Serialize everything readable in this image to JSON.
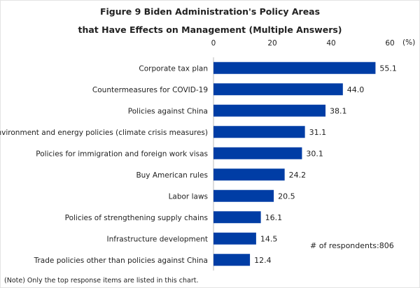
{
  "chart_data": {
    "type": "bar",
    "orientation": "horizontal",
    "title_line1": "Figure 9 Biden Administration's Policy Areas",
    "title_line2": "that Have Effects on Management (Multiple Answers)",
    "unit_label": "(%)",
    "xlim": [
      0,
      60
    ],
    "ticks": [
      0,
      20,
      40,
      60
    ],
    "grid": false,
    "bar_color": "#003DA5",
    "categories": [
      "Corporate tax plan",
      "Countermeasures for COVID-19",
      "Policies against China",
      "Environment and energy policies (climate crisis measures)",
      "Policies for immigration and foreign work visas",
      "Buy American rules",
      "Labor laws",
      "Policies of strengthening supply chains",
      "Infrastructure development",
      "Trade policies other than policies against China"
    ],
    "values": [
      55.1,
      44.0,
      38.1,
      31.1,
      30.1,
      24.2,
      20.5,
      16.1,
      14.5,
      12.4
    ],
    "annotation": "# of respondents:806",
    "note": "(Note) Only the top response items are listed in this chart."
  }
}
